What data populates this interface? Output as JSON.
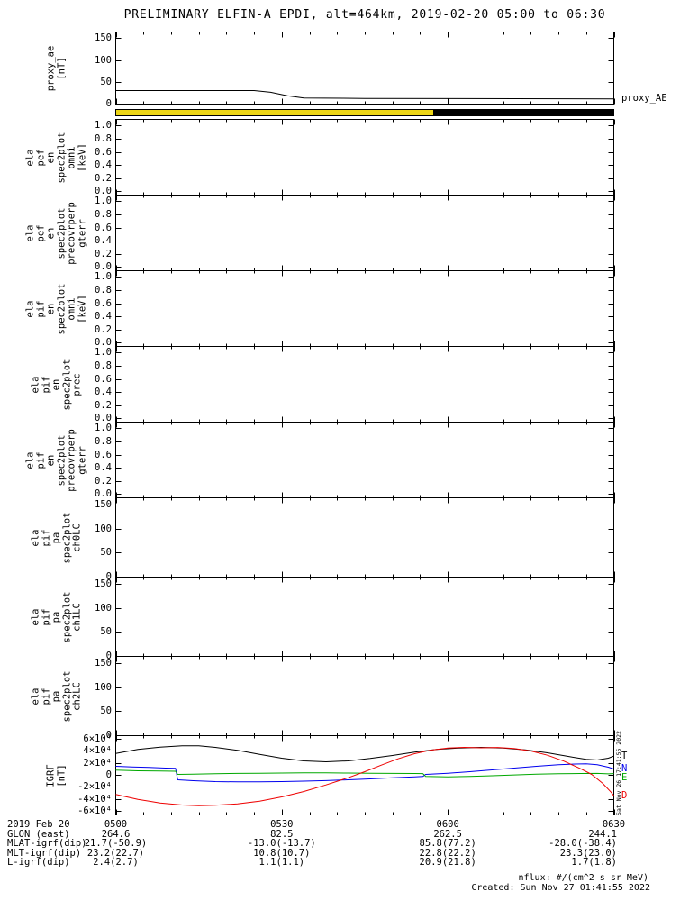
{
  "chart_data": {
    "type": "line",
    "title": "PRELIMINARY ELFIN-A EPDI, alt=464km, 2019-02-20 05:00 to 06:30",
    "x_range_minutes": [
      0,
      90
    ],
    "x_tick_minutes": [
      0,
      30,
      60,
      90
    ],
    "x_tick_labels": [
      "0500",
      "0530",
      "0600",
      "0630"
    ],
    "x_minor_tick_step_minutes": 5,
    "side_note": "Sat Nov 26 17:41:55 2022",
    "sun_bar": {
      "segments": [
        {
          "from": 0,
          "to": 57.4,
          "color": "#ecd515"
        },
        {
          "from": 57.4,
          "to": 90,
          "color": "#000000"
        }
      ]
    },
    "panels": [
      {
        "name": "proxy_ae",
        "ylabel_lines": [
          "proxy_ae",
          "[nT]"
        ],
        "ylim": [
          0,
          165
        ],
        "ytick_values": [
          0,
          50,
          100,
          150
        ],
        "ytick_labels": [
          "0",
          "50",
          "100",
          "150"
        ],
        "series": [
          {
            "name": "proxy_AE",
            "color": "#000000",
            "right_label": "proxy_AE",
            "points": [
              [
                0,
                31
              ],
              [
                25,
                31
              ],
              [
                28,
                27
              ],
              [
                31,
                19
              ],
              [
                34,
                14
              ],
              [
                45,
                13
              ],
              [
                90,
                12
              ]
            ]
          }
        ]
      },
      {
        "name": "ela_pef_en_spec2plot_omni",
        "ylabel_lines": [
          "ela",
          "pef",
          "en",
          "spec2plot",
          "omni",
          "[keV]"
        ],
        "ylim": [
          -0.05,
          1.1
        ],
        "ytick_values": [
          0,
          0.2,
          0.4,
          0.6,
          0.8,
          1
        ],
        "ytick_labels": [
          "0.0",
          "0.2",
          "0.4",
          "0.6",
          "0.8",
          "1.0"
        ],
        "series": []
      },
      {
        "name": "ela_pef_en_spec2plot_precovrperp_gterr",
        "ylabel_lines": [
          "ela",
          "pef",
          "en",
          "spec2plot",
          "precovrperp",
          "gterr"
        ],
        "ylim": [
          -0.05,
          1.1
        ],
        "ytick_values": [
          0,
          0.2,
          0.4,
          0.6,
          0.8,
          1
        ],
        "ytick_labels": [
          "0.0",
          "0.2",
          "0.4",
          "0.6",
          "0.8",
          "1.0"
        ],
        "series": []
      },
      {
        "name": "ela_pif_en_spec2plot_omni",
        "ylabel_lines": [
          "ela",
          "pif",
          "en",
          "spec2plot",
          "omni",
          "[keV]"
        ],
        "ylim": [
          -0.05,
          1.1
        ],
        "ytick_values": [
          0,
          0.2,
          0.4,
          0.6,
          0.8,
          1
        ],
        "ytick_labels": [
          "0.0",
          "0.2",
          "0.4",
          "0.6",
          "0.8",
          "1.0"
        ],
        "series": []
      },
      {
        "name": "ela_pif_en_spec2plot_prec",
        "ylabel_lines": [
          "ela",
          "pif",
          "en",
          "spec2plot",
          "prec"
        ],
        "ylim": [
          -0.05,
          1.1
        ],
        "ytick_values": [
          0,
          0.2,
          0.4,
          0.6,
          0.8,
          1
        ],
        "ytick_labels": [
          "0.0",
          "0.2",
          "0.4",
          "0.6",
          "0.8",
          "1.0"
        ],
        "series": []
      },
      {
        "name": "ela_pif_en_spec2plot_precovrperp_gterr",
        "ylabel_lines": [
          "ela",
          "pif",
          "en",
          "spec2plot",
          "precovrperp",
          "gterr"
        ],
        "ylim": [
          -0.05,
          1.1
        ],
        "ytick_values": [
          0,
          0.2,
          0.4,
          0.6,
          0.8,
          1
        ],
        "ytick_labels": [
          "0.0",
          "0.2",
          "0.4",
          "0.6",
          "0.8",
          "1.0"
        ],
        "series": []
      },
      {
        "name": "ela_pif_pa_spec2plot_ch0LC",
        "ylabel_lines": [
          "ela",
          "pif",
          "pa",
          "spec2plot",
          "ch0LC"
        ],
        "ylim": [
          0,
          165
        ],
        "ytick_values": [
          0,
          50,
          100,
          150
        ],
        "ytick_labels": [
          "0",
          "50",
          "100",
          "150"
        ],
        "series": []
      },
      {
        "name": "ela_pif_pa_spec2plot_ch1LC",
        "ylabel_lines": [
          "ela",
          "pif",
          "pa",
          "spec2plot",
          "ch1LC"
        ],
        "ylim": [
          0,
          165
        ],
        "ytick_values": [
          0,
          50,
          100,
          150
        ],
        "ytick_labels": [
          "0",
          "50",
          "100",
          "150"
        ],
        "series": []
      },
      {
        "name": "ela_pif_pa_spec2plot_ch2LC",
        "ylabel_lines": [
          "ela",
          "pif",
          "pa",
          "spec2plot",
          "ch2LC"
        ],
        "ylim": [
          0,
          165
        ],
        "ytick_values": [
          0,
          50,
          100,
          150
        ],
        "ytick_labels": [
          "0",
          "50",
          "100",
          "150"
        ],
        "series": []
      },
      {
        "name": "igrf",
        "ylabel_lines": [
          "IGRF",
          "[nT]"
        ],
        "ylim": [
          -66000,
          66000
        ],
        "ytick_values": [
          -60000,
          -40000,
          -20000,
          0,
          20000,
          40000,
          60000
        ],
        "ytick_labels": [
          "-6×10⁴",
          "-4×10⁴",
          "-2×10⁴",
          "0",
          "2×10⁴",
          "4×10⁴",
          "6×10⁴"
        ],
        "series": [
          {
            "name": "T",
            "color": "#000000",
            "right_label": "T",
            "points": [
              [
                0,
                36500
              ],
              [
                4,
                43000
              ],
              [
                8,
                47000
              ],
              [
                12,
                49000
              ],
              [
                15,
                49000
              ],
              [
                18,
                46500
              ],
              [
                22,
                41500
              ],
              [
                26,
                35000
              ],
              [
                30,
                28500
              ],
              [
                34,
                24000
              ],
              [
                38,
                22500
              ],
              [
                42,
                24000
              ],
              [
                46,
                28000
              ],
              [
                50,
                33000
              ],
              [
                54,
                38500
              ],
              [
                58,
                43000
              ],
              [
                62,
                45500
              ],
              [
                66,
                46500
              ],
              [
                70,
                45500
              ],
              [
                74,
                42500
              ],
              [
                78,
                37500
              ],
              [
                82,
                31000
              ],
              [
                85,
                26500
              ],
              [
                87,
                25500
              ],
              [
                89,
                28500
              ],
              [
                90,
                32000
              ]
            ]
          },
          {
            "name": "N",
            "color": "#0000ee",
            "right_label": "N",
            "points": [
              [
                0,
                15000
              ],
              [
                3,
                14000
              ],
              [
                6,
                13000
              ],
              [
                9,
                12000
              ],
              [
                10.8,
                11500
              ],
              [
                11.2,
                -7500
              ],
              [
                14,
                -9000
              ],
              [
                18,
                -10500
              ],
              [
                22,
                -11000
              ],
              [
                26,
                -11000
              ],
              [
                30,
                -10500
              ],
              [
                34,
                -9800
              ],
              [
                38,
                -8800
              ],
              [
                42,
                -7500
              ],
              [
                46,
                -6000
              ],
              [
                50,
                -4200
              ],
              [
                54,
                -2500
              ],
              [
                55.5,
                -2000
              ],
              [
                56,
                1500
              ],
              [
                60,
                3500
              ],
              [
                64,
                6000
              ],
              [
                68,
                9000
              ],
              [
                72,
                12000
              ],
              [
                76,
                15000
              ],
              [
                80,
                17500
              ],
              [
                83,
                18800
              ],
              [
                85,
                19000
              ],
              [
                87,
                17500
              ],
              [
                89,
                13500
              ],
              [
                90,
                10500
              ]
            ]
          },
          {
            "name": "E",
            "color": "#00a800",
            "right_label": "E",
            "points": [
              [
                0,
                8500
              ],
              [
                4,
                7500
              ],
              [
                8,
                7000
              ],
              [
                10.8,
                6800
              ],
              [
                11.2,
                1500
              ],
              [
                14,
                2000
              ],
              [
                18,
                2600
              ],
              [
                22,
                3100
              ],
              [
                26,
                3500
              ],
              [
                30,
                3800
              ],
              [
                34,
                4000
              ],
              [
                38,
                4000
              ],
              [
                42,
                3800
              ],
              [
                46,
                3500
              ],
              [
                50,
                3200
              ],
              [
                54,
                3000
              ],
              [
                55.5,
                2800
              ],
              [
                56,
                -2000
              ],
              [
                60,
                -2500
              ],
              [
                64,
                -1800
              ],
              [
                68,
                -800
              ],
              [
                72,
                600
              ],
              [
                76,
                1800
              ],
              [
                80,
                2600
              ],
              [
                84,
                3000
              ],
              [
                87,
                3100
              ],
              [
                89,
                2400
              ],
              [
                90,
                2800
              ]
            ]
          },
          {
            "name": "D",
            "color": "#ee0000",
            "right_label": "D",
            "points": [
              [
                0,
                -32000
              ],
              [
                4,
                -40000
              ],
              [
                8,
                -46000
              ],
              [
                12,
                -49500
              ],
              [
                15,
                -50500
              ],
              [
                18,
                -50000
              ],
              [
                22,
                -47500
              ],
              [
                26,
                -43000
              ],
              [
                30,
                -36000
              ],
              [
                34,
                -27000
              ],
              [
                38,
                -16000
              ],
              [
                42,
                -4000
              ],
              [
                45,
                6000
              ],
              [
                48,
                17000
              ],
              [
                51,
                27500
              ],
              [
                54,
                36000
              ],
              [
                57,
                42000
              ],
              [
                60,
                45500
              ],
              [
                63,
                46500
              ],
              [
                66,
                45800
              ],
              [
                69,
                46300
              ],
              [
                72,
                44500
              ],
              [
                75,
                40500
              ],
              [
                78,
                33500
              ],
              [
                81,
                23500
              ],
              [
                84,
                11000
              ],
              [
                86,
                1500
              ],
              [
                88,
                -13500
              ],
              [
                89.5,
                -28000
              ],
              [
                90,
                -34000
              ]
            ]
          }
        ]
      }
    ]
  },
  "footer": {
    "rows": [
      {
        "label": "2019 Feb 20",
        "values": [
          "0500",
          "0530",
          "0600",
          "0630"
        ]
      },
      {
        "label": "GLON (east)",
        "values": [
          "264.6",
          "82.5",
          "262.5",
          "244.1"
        ]
      },
      {
        "label": "MLAT-igrf(dip)",
        "values": [
          "21.7(-50.9)",
          "-13.0(-13.7)",
          "85.8(77.2)",
          "-28.0(-38.4)"
        ]
      },
      {
        "label": "MLT-igrf(dip)",
        "values": [
          "23.2(22.7)",
          "10.8(10.7)",
          "22.8(22.2)",
          "23.3(23.0)"
        ]
      },
      {
        "label": "L-igrf(dip)",
        "values": [
          "2.4(2.7)",
          "1.1(1.1)",
          "20.9(21.8)",
          "1.7(1.8)"
        ]
      }
    ],
    "nflux_note": "nflux: #/(cm^2 s sr MeV)",
    "created_note": "Created: Sun Nov 27 01:41:55 2022"
  }
}
